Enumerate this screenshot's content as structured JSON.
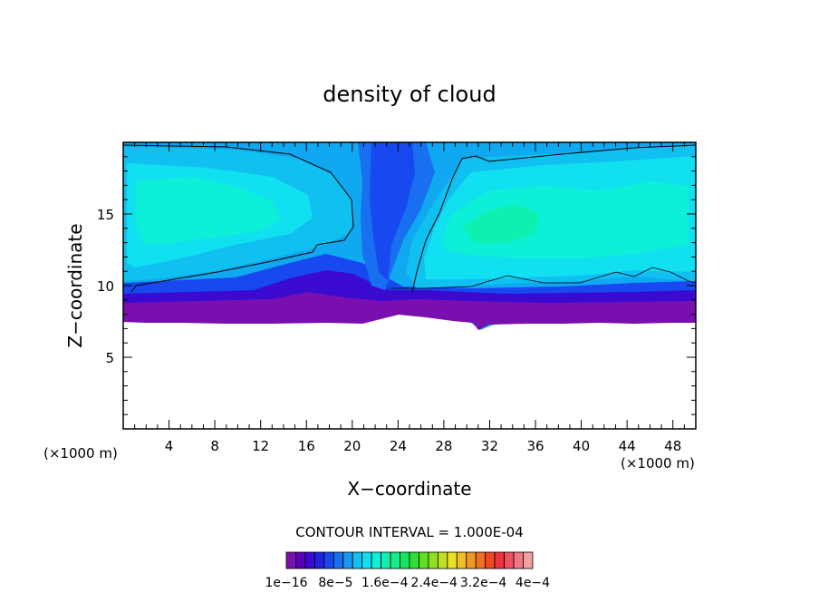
{
  "chart_data": {
    "type": "heatmap",
    "title": "density of cloud",
    "xlabel": "X−coordinate",
    "ylabel": "Z−coordinate",
    "x_unit": "(×1000 m)",
    "z_unit": "(×1000 m)",
    "xlim": [
      0,
      50
    ],
    "ylim": [
      0,
      20
    ],
    "x_ticks": [
      4,
      8,
      12,
      16,
      20,
      24,
      28,
      32,
      36,
      40,
      44,
      48
    ],
    "y_ticks": [
      5,
      10,
      15
    ],
    "contour_interval_text": "CONTOUR INTERVAL = 1.000E-04",
    "colorbar": {
      "colors": [
        "#7a0fb0",
        "#5a00b8",
        "#3a0ad0",
        "#2020e0",
        "#1848f0",
        "#1870f0",
        "#1898f0",
        "#10c0f0",
        "#10e0f0",
        "#10f0d8",
        "#10f0b0",
        "#10f088",
        "#10e860",
        "#30e030",
        "#60e020",
        "#90e020",
        "#c0e020",
        "#e8e020",
        "#f0c020",
        "#f09820",
        "#f07020",
        "#f04820",
        "#f03040",
        "#f05060",
        "#f07880",
        "#f0a0a0"
      ],
      "labels": [
        "1e−16",
        "8e−5",
        "1.6e−4",
        "2.4e−4",
        "3.2e−4",
        "4e−4"
      ]
    }
  }
}
